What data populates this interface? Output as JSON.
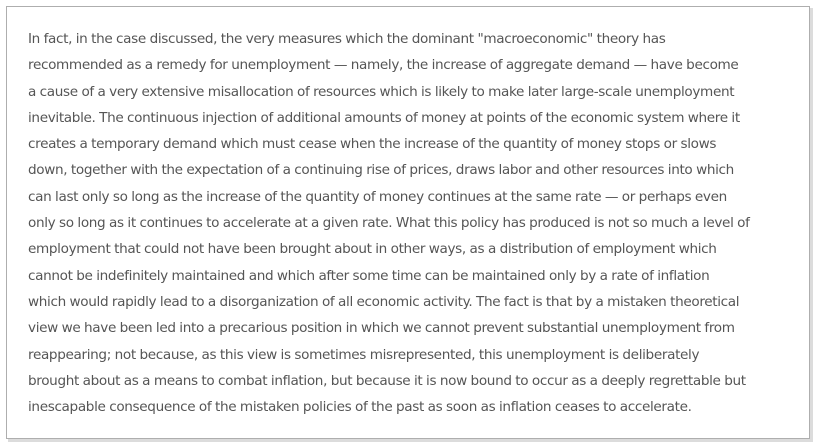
{
  "document": {
    "lines": [
      "In fact, in the case discussed, the very measures which the dominant \"macroeconomic\" theory has",
      "recommended as a remedy for unemployment — namely, the increase of aggregate demand — have become",
      "a cause of a very extensive misallocation of resources which is likely to make later large-scale unemployment",
      "inevitable. The continuous injection of additional amounts of money at points of the economic system where it",
      "creates a temporary demand which must cease when the increase of the quantity of money stops or slows",
      "down, together with the expectation of a continuing rise of prices, draws labor and other resources into which",
      "can last only so long as the increase of the quantity of money continues at the same rate — or perhaps even",
      "only so long as it continues to accelerate at a given rate. What this policy has produced is not so much a level of",
      "employment that could not have been brought about in other ways, as a distribution of employment which",
      "cannot be indefinitely maintained and which after some time can be maintained only by a rate of inflation",
      "which would rapidly lead to a disorganization of all economic activity. The fact is that by a mistaken theoretical",
      "view we have been led into a precarious position in which we cannot prevent substantial unemployment from",
      "reappearing; not because, as this view is sometimes misrepresented, this unemployment is deliberately",
      "brought about as a means to combat inflation, but because it is now bound to occur as a deeply regrettable but",
      "inescapable consequence of the mistaken policies of the past as soon as inflation ceases to accelerate."
    ]
  }
}
